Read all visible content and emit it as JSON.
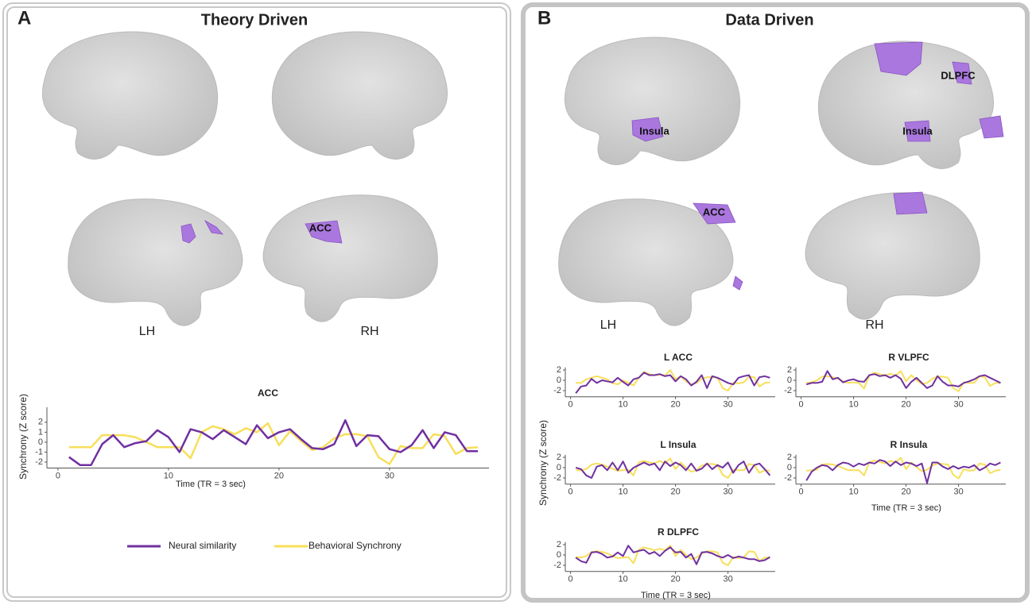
{
  "panels": [
    {
      "letter": "A",
      "title": "Theory Driven",
      "hemispheres": [
        "LH",
        "RH"
      ],
      "regions": [
        "ACC"
      ]
    },
    {
      "letter": "B",
      "title": "Data Driven",
      "hemispheres": [
        "LH",
        "RH"
      ],
      "regions": [
        "Insula",
        "DLPFC",
        "Insula",
        "ACC"
      ]
    }
  ],
  "chart_data": [
    {
      "type": "line",
      "title": "ACC",
      "xlabel": "Time (TR = 3 sec)",
      "ylabel": "Synchrony (Z score)",
      "x": [
        1,
        2,
        3,
        4,
        5,
        6,
        7,
        8,
        9,
        10,
        11,
        12,
        13,
        14,
        15,
        16,
        17,
        18,
        19,
        20,
        21,
        22,
        23,
        24,
        25,
        26,
        27,
        28,
        29,
        30,
        31,
        32,
        33,
        34,
        35,
        36,
        37,
        38
      ],
      "series": [
        {
          "name": "Neural similarity",
          "color": "#7030a0",
          "values": [
            -1.5,
            -2.3,
            -2.3,
            -0.2,
            0.7,
            -0.5,
            -0.1,
            0.1,
            1.2,
            0.5,
            -1,
            1.3,
            1,
            0.3,
            1.2,
            0.5,
            -0.2,
            1.7,
            0.4,
            1,
            1.3,
            0.3,
            -0.6,
            -0.7,
            -0.2,
            2.2,
            -0.4,
            0.7,
            0.6,
            -0.7,
            -1,
            -0.3,
            1.2,
            -0.6,
            1,
            0.7,
            -0.9,
            -0.9
          ]
        },
        {
          "name": "Behavioral Synchrony",
          "color": "#f7df5a",
          "values": [
            -0.5,
            -0.5,
            -0.5,
            0.7,
            0.7,
            0.7,
            0.5,
            0,
            -0.5,
            -0.5,
            -0.5,
            -1.6,
            1,
            1.6,
            1.3,
            0.8,
            1.4,
            1,
            1.9,
            -0.3,
            1.1,
            0.1,
            -0.8,
            -0.5,
            0.4,
            0.8,
            0.8,
            0.6,
            -1.5,
            -2.2,
            -0.4,
            -0.6,
            -0.6,
            0.8,
            0.6,
            -1.2,
            -0.6,
            -0.5
          ]
        }
      ],
      "xlim": [
        -1,
        39
      ],
      "ylim": [
        -2.6,
        3.5
      ],
      "xticks": [
        0,
        10,
        20,
        30
      ],
      "yticks": [
        -2,
        -1,
        0,
        1,
        2
      ]
    },
    {
      "type": "line",
      "title": "L ACC",
      "x": [
        1,
        2,
        3,
        4,
        5,
        6,
        7,
        8,
        9,
        10,
        11,
        12,
        13,
        14,
        15,
        16,
        17,
        18,
        19,
        20,
        21,
        22,
        23,
        24,
        25,
        26,
        27,
        28,
        29,
        30,
        31,
        32,
        33,
        34,
        35,
        36,
        37,
        38
      ],
      "series": [
        {
          "name": "Neural similarity",
          "color": "#7030a0",
          "values": [
            -2.5,
            -1.2,
            -1,
            0.3,
            -0.5,
            0,
            -0.2,
            -0.4,
            0.5,
            -0.3,
            -1,
            0.2,
            0.5,
            1.5,
            1,
            1,
            1.2,
            0.8,
            1,
            -0.2,
            0.8,
            0.2,
            -1,
            -0.3,
            1,
            -1.5,
            0.8,
            0.5,
            0,
            -0.5,
            -0.8,
            0.5,
            0.8,
            1,
            -1,
            0.6,
            0.8,
            0.5
          ]
        },
        {
          "name": "Behavioral Synchrony",
          "color": "#f7df5a",
          "values": [
            -0.5,
            -0.5,
            0.2,
            0.5,
            0.8,
            0.5,
            0.2,
            -0.5,
            -0.8,
            0,
            -0.5,
            -1,
            0.5,
            1.6,
            1.2,
            1,
            1.1,
            0.9,
            2,
            0.2,
            0.8,
            -0.2,
            -0.8,
            -0.5,
            0.3,
            0.6,
            0.6,
            0.5,
            -1.5,
            -2,
            -0.5,
            -0.6,
            -0.4,
            0.7,
            0.6,
            -1.2,
            -0.5,
            -0.4
          ]
        }
      ],
      "xlim": [
        -1,
        39
      ],
      "ylim": [
        -3.2,
        2.5
      ],
      "xticks": [
        0,
        10,
        20,
        30
      ],
      "yticks": [
        -2,
        0,
        2
      ]
    },
    {
      "type": "line",
      "title": "R VLPFC",
      "x": [
        1,
        2,
        3,
        4,
        5,
        6,
        7,
        8,
        9,
        10,
        11,
        12,
        13,
        14,
        15,
        16,
        17,
        18,
        19,
        20,
        21,
        22,
        23,
        24,
        25,
        26,
        27,
        28,
        29,
        30,
        31,
        32,
        33,
        34,
        35,
        36,
        37,
        38
      ],
      "series": [
        {
          "name": "Neural similarity",
          "color": "#7030a0",
          "values": [
            -0.8,
            -0.5,
            -0.5,
            -0.3,
            1.8,
            0.2,
            0.5,
            -0.4,
            0,
            0.2,
            -0.2,
            -0.3,
            1,
            1.2,
            0.8,
            1,
            0.5,
            1,
            0.3,
            -1.5,
            -0.3,
            0.5,
            -0.5,
            -1.5,
            -1,
            0.8,
            -0.3,
            -1,
            -1,
            -1.2,
            -0.5,
            -0.2,
            0.2,
            0.8,
            1,
            0.5,
            0,
            -0.5
          ]
        },
        {
          "name": "Behavioral Synchrony",
          "color": "#f7df5a",
          "values": [
            -0.5,
            -0.4,
            0,
            0.7,
            0.8,
            0.6,
            0.3,
            -0.2,
            -0.5,
            -0.4,
            -0.5,
            -1.6,
            0.9,
            1.5,
            1.2,
            0.9,
            1.3,
            0.9,
            1.8,
            -0.2,
            1,
            0,
            -0.7,
            -0.5,
            0.3,
            0.7,
            0.7,
            0.5,
            -1.5,
            -2.1,
            -0.4,
            -0.5,
            -0.5,
            0.8,
            0.6,
            -1.1,
            -0.5,
            -0.5
          ]
        }
      ],
      "xlim": [
        -1,
        39
      ],
      "ylim": [
        -3.2,
        2.5
      ],
      "xticks": [
        0,
        10,
        20,
        30
      ],
      "yticks": [
        -2,
        0,
        2
      ]
    },
    {
      "type": "line",
      "title": "L Insula",
      "ylabel": "Synchrony (Z score)",
      "x": [
        1,
        2,
        3,
        4,
        5,
        6,
        7,
        8,
        9,
        10,
        11,
        12,
        13,
        14,
        15,
        16,
        17,
        18,
        19,
        20,
        21,
        22,
        23,
        24,
        25,
        26,
        27,
        28,
        29,
        30,
        31,
        32,
        33,
        34,
        35,
        36,
        37,
        38
      ],
      "series": [
        {
          "name": "Neural similarity",
          "color": "#7030a0",
          "values": [
            0,
            -0.3,
            -1.5,
            -2,
            0.2,
            0.5,
            -0.5,
            1,
            -0.5,
            1.2,
            -1,
            0,
            0.5,
            1,
            0.5,
            0.8,
            -0.5,
            1.2,
            0.3,
            1,
            0.5,
            -0.5,
            0.8,
            -0.6,
            -0.2,
            0.8,
            -0.3,
            0.5,
            0,
            1,
            -1,
            0.5,
            1.2,
            -1,
            0.5,
            0.8,
            -0.3,
            -1.5
          ]
        },
        {
          "name": "Behavioral Synchrony",
          "color": "#f7df5a",
          "values": [
            -0.5,
            -0.5,
            -0.3,
            0.6,
            0.8,
            0.6,
            0.2,
            -0.2,
            -0.6,
            -0.5,
            -0.4,
            -1.5,
            1,
            1.3,
            1,
            0.8,
            1.3,
            0.8,
            1.8,
            -0.3,
            1,
            0,
            -0.8,
            -0.5,
            0.4,
            0.7,
            0.7,
            0.5,
            -1.4,
            -2,
            -0.4,
            -0.5,
            -0.5,
            0.7,
            0.5,
            -1,
            -0.5,
            -0.6
          ]
        }
      ],
      "xlim": [
        -1,
        39
      ],
      "ylim": [
        -3.2,
        2.5
      ],
      "xticks": [
        0,
        10,
        20,
        30
      ],
      "yticks": [
        -2,
        0,
        2
      ]
    },
    {
      "type": "line",
      "title": "R Insula",
      "xlabel": "Time (TR = 3 sec)",
      "x": [
        1,
        2,
        3,
        4,
        5,
        6,
        7,
        8,
        9,
        10,
        11,
        12,
        13,
        14,
        15,
        16,
        17,
        18,
        19,
        20,
        21,
        22,
        23,
        24,
        25,
        26,
        27,
        28,
        29,
        30,
        31,
        32,
        33,
        34,
        35,
        36,
        37,
        38
      ],
      "series": [
        {
          "name": "Neural similarity",
          "color": "#7030a0",
          "values": [
            -2.5,
            -0.8,
            0,
            0.5,
            0.3,
            -0.5,
            0.5,
            1,
            0.8,
            0.2,
            0.8,
            0.5,
            1,
            0.8,
            1.5,
            1.2,
            0.3,
            1.2,
            0.5,
            1,
            0.8,
            0.3,
            0.8,
            -3,
            1,
            1,
            0.2,
            -0.3,
            0.3,
            -0.2,
            0.2,
            0,
            0.5,
            -0.5,
            0,
            0.8,
            0.5,
            1
          ]
        },
        {
          "name": "Behavioral Synchrony",
          "color": "#f7df5a",
          "values": [
            -0.6,
            -0.5,
            -0.4,
            0.6,
            0.7,
            0.6,
            0.3,
            -0.1,
            -0.5,
            -0.5,
            -0.5,
            -1.5,
            1,
            1.4,
            1.1,
            0.8,
            1.3,
            1,
            1.9,
            -0.3,
            1,
            0.1,
            -0.7,
            -0.4,
            0.4,
            0.8,
            0.7,
            0.6,
            -1.4,
            -2.1,
            -0.3,
            -0.6,
            -0.5,
            0.8,
            0.6,
            -1.1,
            -0.6,
            -0.4
          ]
        }
      ],
      "xlim": [
        -1,
        39
      ],
      "ylim": [
        -3.2,
        2.5
      ],
      "xticks": [
        0,
        10,
        20,
        30
      ],
      "yticks": [
        -2,
        0,
        2
      ]
    },
    {
      "type": "line",
      "title": "R DLPFC",
      "xlabel": "Time (TR = 3 sec)",
      "x": [
        1,
        2,
        3,
        4,
        5,
        6,
        7,
        8,
        9,
        10,
        11,
        12,
        13,
        14,
        15,
        16,
        17,
        18,
        19,
        20,
        21,
        22,
        23,
        24,
        25,
        26,
        27,
        28,
        29,
        30,
        31,
        32,
        33,
        34,
        35,
        36,
        37,
        38
      ],
      "series": [
        {
          "name": "Neural similarity",
          "color": "#7030a0",
          "values": [
            -0.5,
            -1.2,
            -1.5,
            0.5,
            0.6,
            0.2,
            -0.5,
            -0.3,
            0.5,
            -0.2,
            1.8,
            0.5,
            0.8,
            1,
            0.2,
            0.6,
            -0.2,
            0.8,
            1.5,
            0.5,
            0.6,
            -0.5,
            0.2,
            -1.8,
            0.5,
            0.6,
            0.3,
            -0.2,
            -0.5,
            0,
            -0.6,
            -0.3,
            -0.5,
            -0.8,
            -0.8,
            -1.2,
            -1,
            -0.4
          ]
        },
        {
          "name": "Behavioral Synchrony",
          "color": "#f7df5a",
          "values": [
            -0.4,
            -0.5,
            -0.2,
            0.6,
            0.7,
            0.6,
            0.3,
            -0.2,
            -0.6,
            -0.5,
            -0.4,
            -1.6,
            1,
            1.5,
            1.2,
            0.9,
            1.2,
            0.9,
            1.8,
            -0.2,
            1,
            0,
            -0.8,
            -0.5,
            0.3,
            0.7,
            0.7,
            0.5,
            -1.5,
            -2,
            -0.4,
            -0.6,
            -0.5,
            0.7,
            0.6,
            -1.2,
            -0.5,
            -0.5
          ]
        }
      ],
      "xlim": [
        -1,
        39
      ],
      "ylim": [
        -3.2,
        2.5
      ],
      "xticks": [
        0,
        10,
        20,
        30
      ],
      "yticks": [
        -2,
        0,
        2
      ]
    }
  ]
}
